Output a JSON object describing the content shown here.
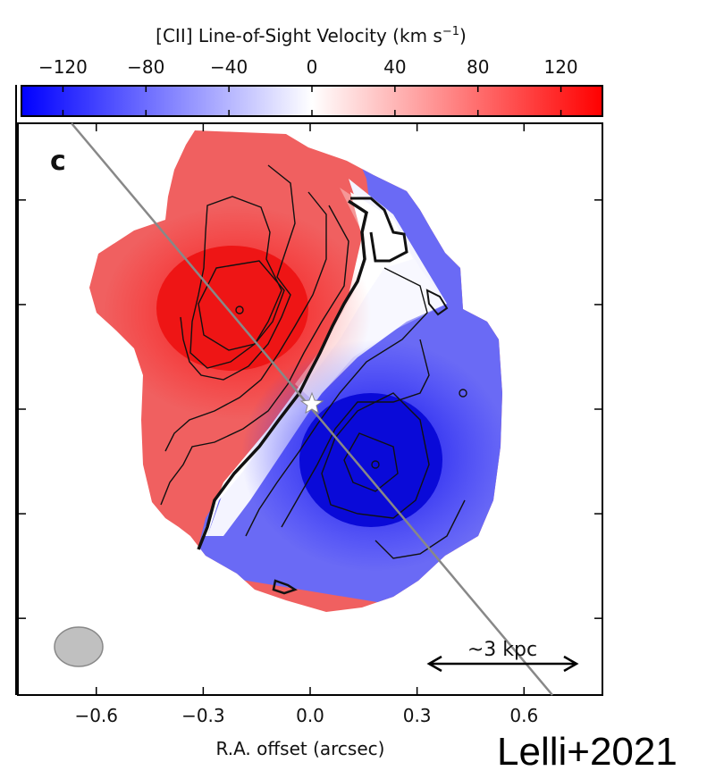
{
  "chart_data": {
    "type": "heatmap",
    "panel_label": "c",
    "colorbar": {
      "title": "[CII] Line-of-Sight Velocity (km s",
      "title_sup": "−1",
      "title_close": ")",
      "range": [
        -140,
        140
      ],
      "ticks": [
        -120,
        -80,
        -40,
        0,
        40,
        80,
        120
      ],
      "tick_labels": [
        "−120",
        "−80",
        "−40",
        "0",
        "40",
        "80",
        "120"
      ],
      "colormap": {
        "low": "#0000ff",
        "mid": "#ffffff",
        "high": "#ff0000"
      }
    },
    "xlabel": "R.A. offset (arcsec)",
    "xlim": [
      -0.82,
      0.82
    ],
    "xticks": [
      -0.6,
      -0.3,
      0.0,
      0.3,
      0.6
    ],
    "xtick_labels": [
      "−0.6",
      "−0.3",
      "0.0",
      "0.3",
      "0.6"
    ],
    "ylim": [
      -0.82,
      0.82
    ],
    "yticks": [
      -0.6,
      -0.3,
      0.0,
      0.3,
      0.6
    ],
    "velocity_field": {
      "receding_side": "upper-left",
      "approaching_side": "lower-right",
      "max_velocity": 120,
      "min_velocity": -120
    },
    "major_axis_line": true,
    "center_marker": "star",
    "beam": "lower-left",
    "scalebar_label": "~3 kpc"
  },
  "citation": "Lelli+2021"
}
